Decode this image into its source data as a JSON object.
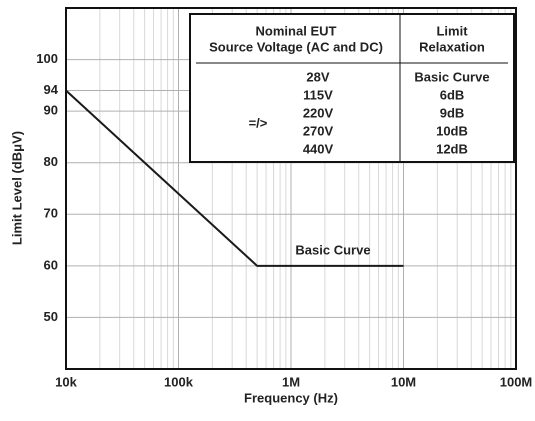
{
  "chart_data": {
    "type": "line",
    "x_label": "Frequency (Hz)",
    "y_label": "Limit Level (dBμV)",
    "log_x": true,
    "grid": true,
    "minor_grid": true,
    "xlim": [
      10000,
      100000000
    ],
    "xticks": [
      {
        "value": 10000,
        "label": "10k"
      },
      {
        "value": 100000,
        "label": "100k"
      },
      {
        "value": 1000000,
        "label": "1M"
      },
      {
        "value": 10000000,
        "label": "10M"
      },
      {
        "value": 100000000,
        "label": "100M"
      }
    ],
    "ylim": [
      40,
      110
    ],
    "yticks": [
      50,
      60,
      70,
      80,
      90,
      94,
      100
    ],
    "series": [
      {
        "color": "#1a1a1a",
        "x": [
          10000,
          500000,
          10000000
        ],
        "values": [
          94,
          60,
          60
        ]
      }
    ],
    "annotation": "Basic Curve",
    "table": {
      "header": [
        [
          "Nominal EUT",
          "Source Voltage (AC and DC)"
        ],
        [
          "Limit",
          "Relaxation"
        ]
      ],
      "symbol": "=/>",
      "rows": [
        [
          "28V",
          "Basic Curve"
        ],
        [
          "115V",
          "6dB"
        ],
        [
          "220V",
          "9dB"
        ],
        [
          "270V",
          "10dB"
        ],
        [
          "440V",
          "12dB"
        ]
      ]
    }
  }
}
